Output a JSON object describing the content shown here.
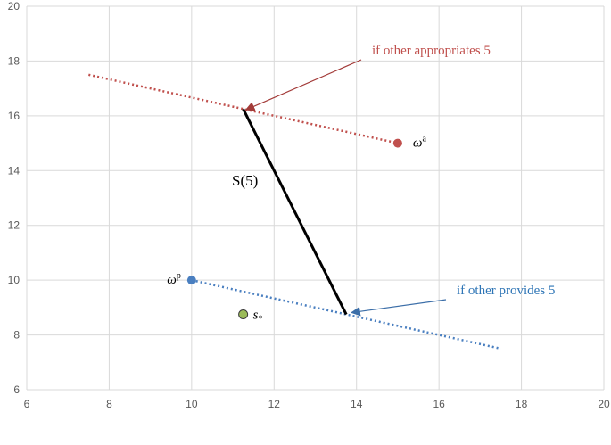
{
  "chart_data": {
    "type": "scatter",
    "xlim": [
      6,
      20
    ],
    "ylim": [
      6,
      20
    ],
    "x_ticks": [
      "6",
      "8",
      "10",
      "12",
      "14",
      "16",
      "18",
      "20"
    ],
    "y_ticks": [
      "6",
      "8",
      "10",
      "12",
      "14",
      "16",
      "18",
      "20"
    ],
    "grid": true,
    "series": [
      {
        "label": "if other appropriates 5",
        "style": "dotted",
        "color": "#c0504d",
        "x": [
          7.5,
          15
        ],
        "y": [
          17.5,
          15
        ]
      },
      {
        "label": "if other provides 5",
        "style": "dotted",
        "color": "#4a7fc0",
        "x": [
          10,
          17.5
        ],
        "y": [
          10,
          7.5
        ]
      },
      {
        "label": "S(5)",
        "style": "solid",
        "color": "#000000",
        "x": [
          11.25,
          13.75
        ],
        "y": [
          16.25,
          8.75
        ]
      }
    ],
    "points": [
      {
        "label": "ω",
        "sup": "a",
        "x": 15,
        "y": 15,
        "color": "#c0504d"
      },
      {
        "label": "ω",
        "sup": "p",
        "x": 10,
        "y": 10,
        "color": "#4a7fc0"
      },
      {
        "label": "s",
        "sub": "*",
        "x": 11.25,
        "y": 8.75,
        "color": "#9bbb59"
      }
    ],
    "annotations": [
      {
        "text": "if other appropriates 5",
        "color": "#c0504d",
        "arrow_to": [
          11.25,
          16.25
        ]
      },
      {
        "text": "if other provides 5",
        "color": "#2e75b6",
        "arrow_to": [
          13.75,
          8.75
        ]
      },
      {
        "text": "S(5)",
        "color": "#000000"
      }
    ]
  }
}
